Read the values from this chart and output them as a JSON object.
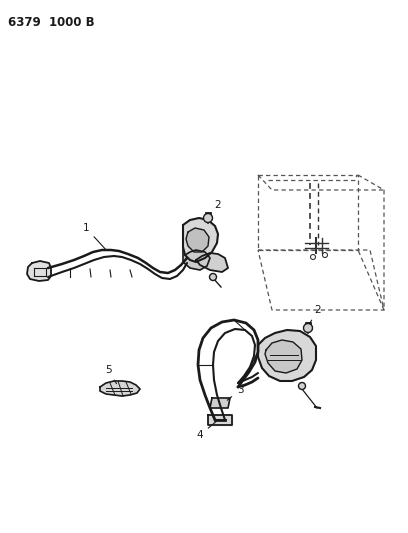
{
  "title": "6379  1000 B",
  "background_color": "#ffffff",
  "line_color": "#1a1a1a",
  "fig_width": 4.08,
  "fig_height": 5.33,
  "dpi": 100
}
